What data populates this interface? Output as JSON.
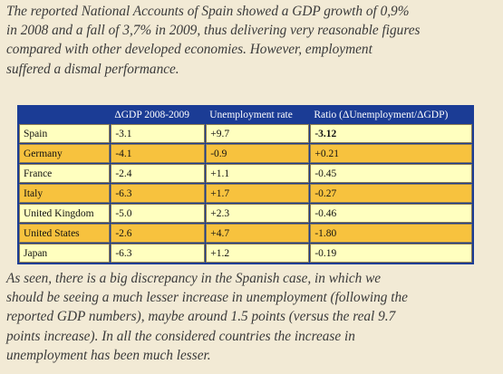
{
  "intro": [
    "The reported National Accounts of Spain showed a GDP growth of 0,9%",
    "in 2008 and a fall of 3,7% in 2009, thus delivering very reasonable figures",
    "compared with other developed economies. However, employment",
    "suffered a dismal performance."
  ],
  "table": {
    "header": [
      "",
      "ΔGDP 2008-2009",
      "Unemployment rate",
      "Ratio (ΔUnemployment/ΔGDP)"
    ],
    "rows": [
      [
        "Spain",
        "-3.1",
        "+9.7",
        "-3.12"
      ],
      [
        "Germany",
        "-4.1",
        "-0.9",
        "+0.21"
      ],
      [
        "France",
        "-2.4",
        "+1.1",
        "-0.45"
      ],
      [
        "Italy",
        "-6.3",
        "+1.7",
        "-0.27"
      ],
      [
        "United Kingdom",
        "-5.0",
        "+2.3",
        "-0.46"
      ],
      [
        "United States",
        "-2.6",
        "+4.7",
        "-1.80"
      ],
      [
        "Japan",
        "-6.3",
        "+1.2",
        "-0.19"
      ]
    ]
  },
  "outro": [
    "As seen, there is a big discrepancy in the Spanish case, in which we",
    "should be seeing a much lesser increase in unemployment (following the",
    "reported GDP numbers), maybe around 1.5 points (versus the real 9.7",
    "points increase). In all the considered countries the increase in",
    "unemployment has been much lesser."
  ]
}
